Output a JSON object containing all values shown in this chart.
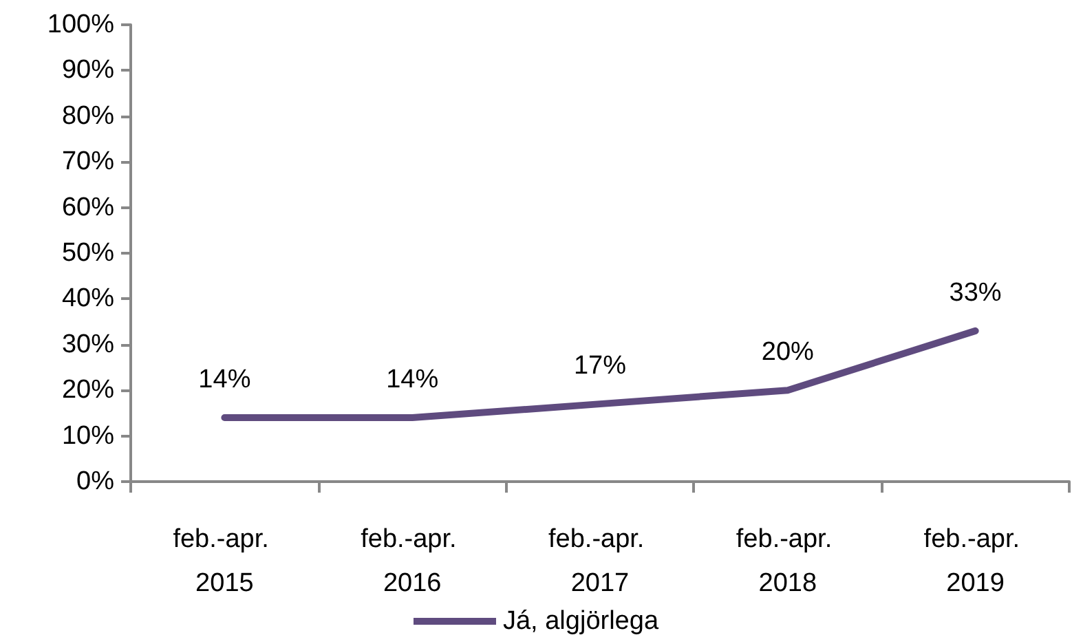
{
  "chart_data": {
    "type": "line",
    "categories": [
      "feb.-apr. 2015",
      "feb.-apr. 2016",
      "feb.-apr. 2017",
      "feb.-apr. 2018",
      "feb.-apr. 2019"
    ],
    "series": [
      {
        "name": "Já, algjörlega",
        "color": "#5f4b7f",
        "values": [
          14,
          14,
          17,
          20,
          33
        ],
        "value_labels": [
          "14%",
          "14%",
          "17%",
          "20%",
          "33%"
        ]
      }
    ],
    "ylim": [
      0,
      100
    ],
    "yticks": [
      {
        "value": 0,
        "label": "0%"
      },
      {
        "value": 10,
        "label": "10%"
      },
      {
        "value": 20,
        "label": "20%"
      },
      {
        "value": 30,
        "label": "30%"
      },
      {
        "value": 40,
        "label": "40%"
      },
      {
        "value": 50,
        "label": "50%"
      },
      {
        "value": 60,
        "label": "60%"
      },
      {
        "value": 70,
        "label": "70%"
      },
      {
        "value": 80,
        "label": "80%"
      },
      {
        "value": 90,
        "label": "90%"
      },
      {
        "value": 100,
        "label": "100%"
      }
    ],
    "grid": false,
    "legend": "bottom",
    "marker": "none",
    "line_style": "solid"
  }
}
